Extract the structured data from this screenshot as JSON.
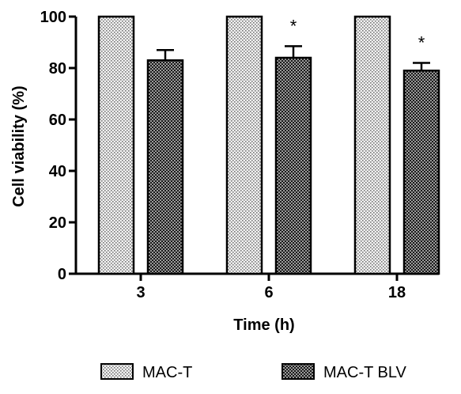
{
  "chart_data": {
    "type": "bar",
    "categories": [
      "3",
      "6",
      "18"
    ],
    "series": [
      {
        "name": "MAC-T",
        "values": [
          100,
          100,
          100
        ],
        "errors": [
          0,
          0,
          0
        ],
        "significance": [
          "",
          "",
          ""
        ],
        "pattern": "light-dots"
      },
      {
        "name": "MAC-T BLV",
        "values": [
          83,
          84,
          79
        ],
        "errors": [
          4,
          4.5,
          3
        ],
        "significance": [
          "",
          "*",
          "*"
        ],
        "pattern": "crosshatch"
      }
    ],
    "xlabel": "Time (h)",
    "ylabel": "Cell viability (%)",
    "ylim": [
      0,
      100
    ],
    "yticks": [
      0,
      20,
      40,
      60,
      80,
      100
    ],
    "grid": false,
    "legend_position": "bottom"
  }
}
